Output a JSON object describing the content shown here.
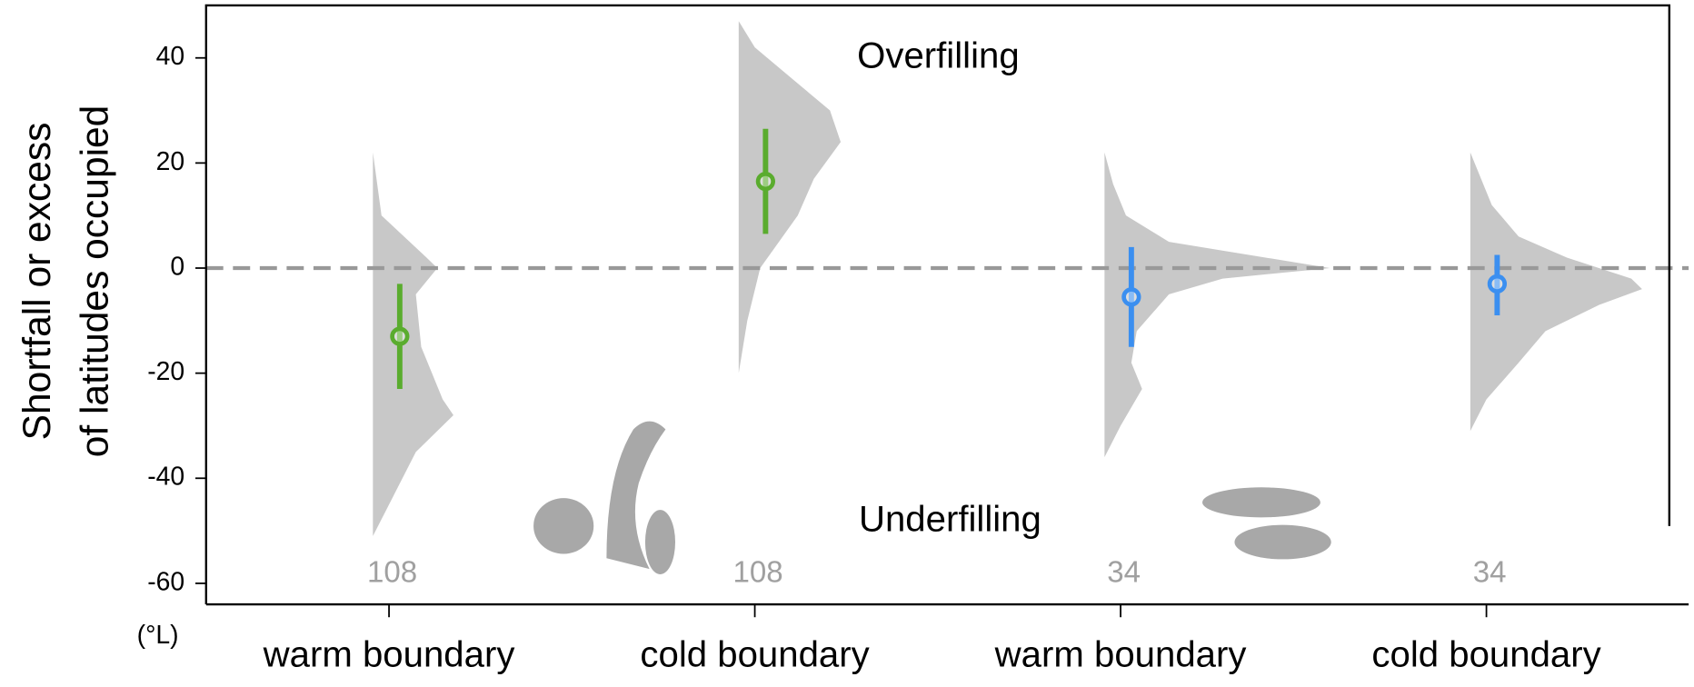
{
  "chart_data": {
    "type": "half-violin",
    "y_label": [
      "Shortfall or excess",
      "of latitudes occupied"
    ],
    "y_unit": "(°L)",
    "annotations": [
      "Overfilling",
      "Underfilling"
    ],
    "ylim": [
      -64,
      50
    ],
    "yticks": [
      40,
      20,
      0,
      -20,
      -40,
      -60
    ],
    "reference_line": 0,
    "density_color": "#c8c8c8",
    "count_color": "#a0a0a0",
    "groups": [
      {
        "category": "warm boundary",
        "n": "108",
        "estimate": -13,
        "lower": -23,
        "upper": -3,
        "color": "#5aac2e",
        "density": {
          "y": [
            -51,
            -45,
            -35,
            -28,
            -25,
            -15,
            -5,
            0,
            2,
            10,
            22
          ],
          "width": [
            0,
            15,
            40,
            75,
            65,
            45,
            40,
            60,
            50,
            8,
            0
          ]
        }
      },
      {
        "category": "cold boundary",
        "n": "108",
        "estimate": 16.5,
        "lower": 6.5,
        "upper": 26.5,
        "color": "#5aac2e",
        "density": {
          "y": [
            -20,
            -10,
            0,
            10,
            17,
            24,
            30,
            36,
            42,
            47
          ],
          "width": [
            0,
            8,
            20,
            55,
            70,
            95,
            85,
            50,
            15,
            0
          ]
        }
      },
      {
        "category": "warm boundary",
        "n": "34",
        "estimate": -5.5,
        "lower": -15,
        "upper": 4,
        "color": "#3b8ff0",
        "density": {
          "y": [
            -36,
            -30,
            -23,
            -18,
            -12,
            -5,
            -2,
            0,
            2,
            5,
            10,
            16,
            22
          ],
          "width": [
            0,
            15,
            35,
            25,
            30,
            60,
            110,
            210,
            150,
            60,
            20,
            8,
            0
          ]
        }
      },
      {
        "category": "cold boundary",
        "n": "34",
        "estimate": -3,
        "lower": -9,
        "upper": 2.5,
        "color": "#3b8ff0",
        "density": {
          "y": [
            -31,
            -25,
            -18,
            -12,
            -7,
            -4,
            -2,
            2,
            6,
            12,
            22
          ],
          "width": [
            0,
            15,
            45,
            70,
            120,
            160,
            150,
            90,
            45,
            20,
            0
          ]
        }
      }
    ]
  }
}
